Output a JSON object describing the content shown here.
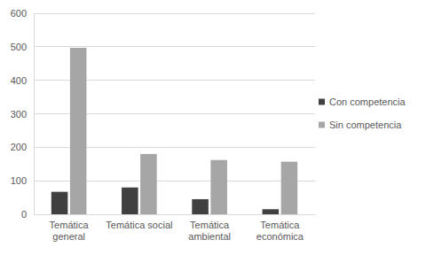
{
  "chart_data": {
    "type": "bar",
    "categories": [
      "Temática general",
      "Temática social",
      "Temática ambiental",
      "Temática económica"
    ],
    "series": [
      {
        "name": "Con competencia",
        "color": "#404040",
        "values": [
          67,
          80,
          45,
          15
        ]
      },
      {
        "name": "Sin competencia",
        "color": "#a6a6a6",
        "values": [
          497,
          180,
          162,
          157
        ]
      }
    ],
    "ylim": [
      0,
      600
    ],
    "yticks": [
      0,
      100,
      200,
      300,
      400,
      500,
      600
    ],
    "grid": true,
    "legend": "right"
  }
}
